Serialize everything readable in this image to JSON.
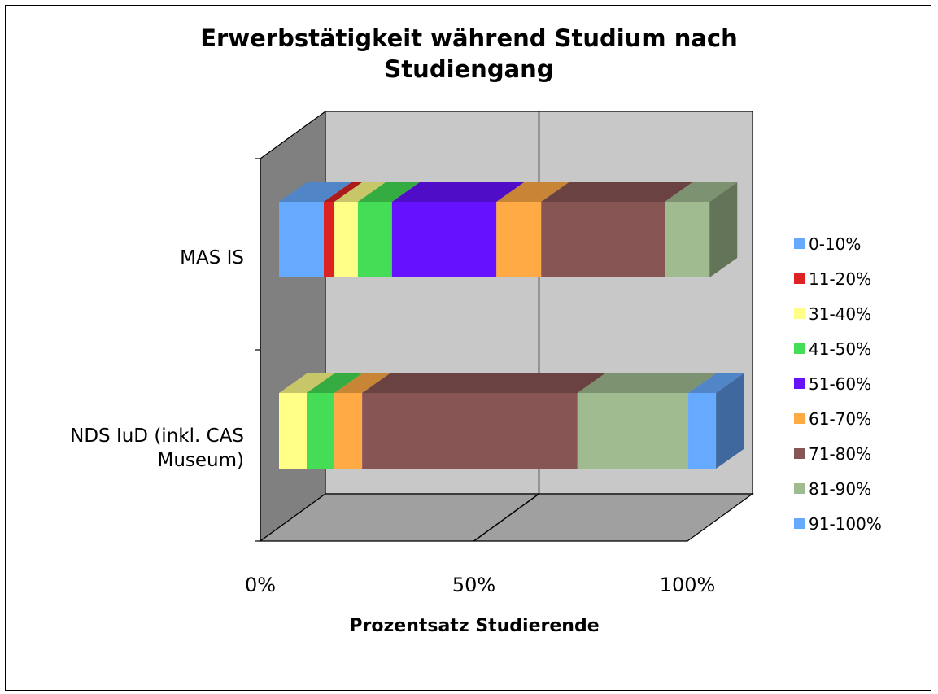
{
  "chart_data": {
    "type": "bar",
    "orientation": "horizontal",
    "stacked": "100%",
    "style": "3d",
    "title": [
      "Erwerbstätigkeit während Studium nach",
      "Studiengang"
    ],
    "xlabel": "Prozentsatz Studierende",
    "xlim": [
      0,
      100
    ],
    "x_ticks": [
      "0%",
      "50%",
      "100%"
    ],
    "legend_position": "right",
    "categories": [
      {
        "lines": [
          "MAS IS"
        ]
      },
      {
        "lines": [
          "NDS IuD (inkl. CAS",
          "Museum)"
        ]
      }
    ],
    "series": [
      {
        "name": "0-10%",
        "color": "#66aaff",
        "values": [
          10.5,
          0
        ]
      },
      {
        "name": "11-20%",
        "color": "#dd2222",
        "values": [
          2.5,
          0
        ]
      },
      {
        "name": "31-40%",
        "color": "#ffff88",
        "values": [
          5.5,
          6.5
        ]
      },
      {
        "name": "41-50%",
        "color": "#44dd55",
        "values": [
          8,
          6.5
        ]
      },
      {
        "name": "51-60%",
        "color": "#6611ff",
        "values": [
          24.5,
          0
        ]
      },
      {
        "name": "61-70%",
        "color": "#ffaa44",
        "values": [
          10.5,
          6.5
        ]
      },
      {
        "name": "71-80%",
        "color": "#885555",
        "values": [
          29,
          50.5
        ]
      },
      {
        "name": "81-90%",
        "color": "#a0bb90",
        "values": [
          10.5,
          26
        ]
      },
      {
        "name": "91-100%",
        "color": "#66aaff",
        "values": [
          0,
          6.5
        ]
      }
    ]
  }
}
